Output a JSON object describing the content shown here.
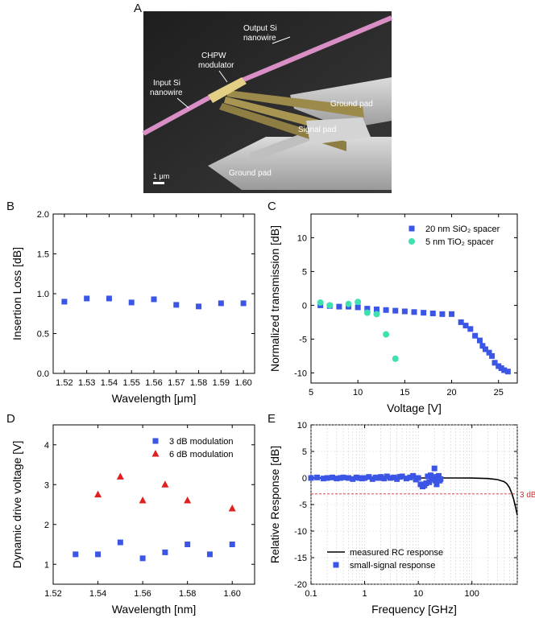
{
  "panels": {
    "a": "A",
    "b": "B",
    "c": "C",
    "d": "D",
    "e": "E"
  },
  "sem": {
    "labels": {
      "output_si": [
        "Output Si",
        "nanowire"
      ],
      "input_si": [
        "Input Si",
        "nanowire"
      ],
      "chpw": [
        "CHPW",
        "modulator"
      ],
      "ground_pad_top": "Ground pad",
      "signal_pad": "Signal pad",
      "ground_pad_bottom": "Ground pad",
      "scale": "1 μm"
    },
    "colors": {
      "waveguide": "#d98fc6",
      "modulator": "#d7c27a",
      "pad": "#c8c8c8",
      "background": "#2a2a2a"
    }
  },
  "chart_data": [
    {
      "id": "B",
      "type": "scatter",
      "xlabel": "Wavelength [μm]",
      "ylabel": "Insertion Loss [dB]",
      "xlim": [
        1.515,
        1.605
      ],
      "ylim": [
        0.0,
        2.0
      ],
      "xticks": [
        "1.52",
        "1.53",
        "1.54",
        "1.55",
        "1.56",
        "1.57",
        "1.58",
        "1.59",
        "1.60"
      ],
      "yticks": [
        "0.0",
        "0.5",
        "1.0",
        "1.5",
        "2.0"
      ],
      "series": [
        {
          "name": "insertion loss",
          "marker": "square",
          "color": "#3b55e6",
          "x": [
            1.52,
            1.53,
            1.54,
            1.55,
            1.56,
            1.57,
            1.58,
            1.59,
            1.6
          ],
          "y": [
            0.9,
            0.94,
            0.94,
            0.89,
            0.93,
            0.86,
            0.84,
            0.88,
            0.88
          ]
        }
      ]
    },
    {
      "id": "C",
      "type": "scatter",
      "xlabel": "Voltage [V]",
      "ylabel": "Normalized transmission [dB]",
      "xlim": [
        5,
        27
      ],
      "ylim": [
        -11.5,
        13.5
      ],
      "xticks": [
        "5",
        "10",
        "15",
        "20",
        "25"
      ],
      "yticks": [
        "-10",
        "-5",
        "0",
        "5",
        "10"
      ],
      "legend": [
        {
          "label": "20 nm SiO₂ spacer",
          "marker": "square",
          "color": "#3b55e6"
        },
        {
          "label": "5 nm TiO₂ spacer",
          "marker": "circle",
          "color": "#40e0b0"
        }
      ],
      "series": [
        {
          "name": "20 nm SiO2 spacer",
          "marker": "square",
          "color": "#3b55e6",
          "x": [
            6,
            7,
            8,
            9,
            10,
            11,
            12,
            13,
            14,
            15,
            16,
            17,
            18,
            19,
            20,
            21,
            21.5,
            22,
            22.5,
            23,
            23.3,
            23.6,
            24,
            24.3,
            24.6,
            25,
            25.3,
            25.6,
            26
          ],
          "y": [
            0,
            -0.1,
            -0.2,
            -0.2,
            -0.3,
            -0.5,
            -0.6,
            -0.7,
            -0.8,
            -0.9,
            -1.0,
            -1.1,
            -1.2,
            -1.3,
            -1.3,
            -2.5,
            -3.0,
            -3.5,
            -4.5,
            -5.2,
            -6.0,
            -6.5,
            -7.0,
            -7.5,
            -8.5,
            -9.0,
            -9.3,
            -9.6,
            -9.8
          ]
        },
        {
          "name": "5 nm TiO2 spacer",
          "marker": "circle",
          "color": "#40e0b0",
          "x": [
            6,
            7,
            9,
            10,
            11,
            12,
            13,
            14
          ],
          "y": [
            0.4,
            0.0,
            0.2,
            0.5,
            -1.1,
            -1.3,
            -4.3,
            -7.9
          ]
        }
      ]
    },
    {
      "id": "D",
      "type": "scatter",
      "xlabel": "Wavelength [nm]",
      "ylabel": "Dynamic drive voltage [V]",
      "xlim": [
        1.52,
        1.61
      ],
      "ylim": [
        0.5,
        4.5
      ],
      "xticks": [
        "1.52",
        "1.54",
        "1.56",
        "1.58",
        "1.60"
      ],
      "yticks": [
        "1",
        "2",
        "3",
        "4"
      ],
      "legend": [
        {
          "label": "3 dB modulation",
          "marker": "square",
          "color": "#3b55e6"
        },
        {
          "label": "6 dB modulation",
          "marker": "triangle",
          "color": "#e02020"
        }
      ],
      "series": [
        {
          "name": "3 dB modulation",
          "marker": "square",
          "color": "#3b55e6",
          "x": [
            1.53,
            1.54,
            1.55,
            1.56,
            1.57,
            1.58,
            1.59,
            1.6
          ],
          "y": [
            1.25,
            1.25,
            1.55,
            1.15,
            1.3,
            1.5,
            1.25,
            1.5
          ]
        },
        {
          "name": "6 dB modulation",
          "marker": "triangle",
          "color": "#e02020",
          "x": [
            1.54,
            1.55,
            1.56,
            1.57,
            1.58,
            1.6
          ],
          "y": [
            2.75,
            3.2,
            2.6,
            3.0,
            2.6,
            2.4
          ]
        }
      ]
    },
    {
      "id": "E",
      "type": "line",
      "xscale": "log",
      "xlabel": "Frequency [GHz]",
      "ylabel": "Relative Response [dB]",
      "xlim": [
        0.1,
        700
      ],
      "ylim": [
        -20,
        10
      ],
      "xticks": [
        "0.1",
        "1",
        "10",
        "100"
      ],
      "yticks": [
        "-20",
        "-15",
        "-10",
        "-5",
        "0",
        "5",
        "10"
      ],
      "annotation": "3 dB",
      "threshold": -3,
      "legend": [
        {
          "label": "measured RC response",
          "marker": "line",
          "color": "#000000"
        },
        {
          "label": "small-signal response",
          "marker": "square",
          "color": "#3b55e6"
        }
      ],
      "series": [
        {
          "name": "measured RC response",
          "marker": "line",
          "color": "#000000",
          "x": [
            0.1,
            1,
            10,
            50,
            100,
            200,
            300,
            400,
            450,
            500,
            550,
            600,
            650,
            700
          ],
          "y": [
            0,
            0,
            0,
            0,
            -0.02,
            -0.1,
            -0.3,
            -0.7,
            -1.1,
            -1.8,
            -2.8,
            -4.0,
            -5.5,
            -7.0
          ]
        },
        {
          "name": "small-signal response",
          "marker": "square",
          "color": "#3b55e6",
          "x": [
            0.1,
            0.13,
            0.17,
            0.2,
            0.25,
            0.3,
            0.35,
            0.4,
            0.5,
            0.6,
            0.7,
            0.8,
            0.9,
            1,
            1.2,
            1.4,
            1.6,
            1.8,
            2,
            2.3,
            2.6,
            3,
            3.5,
            4,
            4.5,
            5,
            6,
            7,
            8,
            9,
            10,
            11,
            12,
            13,
            14,
            15,
            16,
            17,
            18,
            19,
            20,
            21,
            22,
            23,
            24,
            25,
            26
          ],
          "y": [
            0,
            0.1,
            -0.1,
            0,
            0.1,
            -0.1,
            0,
            0.1,
            0,
            -0.2,
            0.1,
            0,
            -0.1,
            0,
            0.2,
            -0.2,
            0.1,
            0,
            0.2,
            -0.1,
            0.3,
            0,
            0.1,
            -0.2,
            0.2,
            0.3,
            -0.1,
            0.1,
            0.4,
            -0.3,
            0,
            -1.2,
            -1.6,
            -1.4,
            -1.0,
            0.3,
            -0.8,
            0.5,
            -0.3,
            0.2,
            1.8,
            -0.5,
            -1.2,
            -0.2,
            0.4,
            -0.5,
            -0.2
          ]
        }
      ]
    }
  ]
}
